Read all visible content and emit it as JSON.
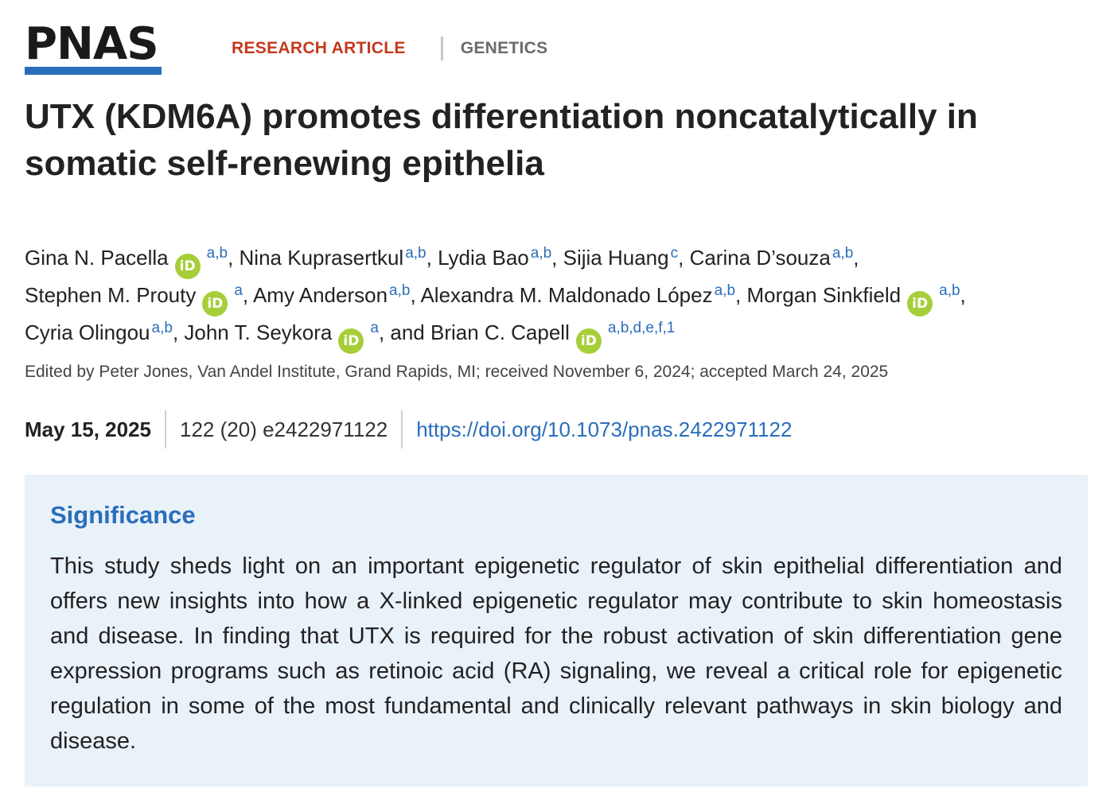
{
  "journal": {
    "logo_text": "PNAS",
    "article_type": "RESEARCH ARTICLE",
    "section": "GENETICS"
  },
  "article": {
    "title": "UTX (KDM6A) promotes differentiation noncatalytically in somatic self-renewing epithelia",
    "authors": [
      {
        "name": "Gina N. Pacella",
        "orcid": true,
        "affiliations": "a,b"
      },
      {
        "name": "Nina Kuprasertkul",
        "orcid": false,
        "affiliations": "a,b"
      },
      {
        "name": "Lydia Bao",
        "orcid": false,
        "affiliations": "a,b"
      },
      {
        "name": "Sijia Huang",
        "orcid": false,
        "affiliations": "c"
      },
      {
        "name": "Carina D’souza",
        "orcid": false,
        "affiliations": "a,b"
      },
      {
        "name": "Stephen M. Prouty",
        "orcid": true,
        "affiliations": "a"
      },
      {
        "name": "Amy Anderson",
        "orcid": false,
        "affiliations": "a,b"
      },
      {
        "name": "Alexandra M. Maldonado López",
        "orcid": false,
        "affiliations": "a,b"
      },
      {
        "name": "Morgan Sinkfield",
        "orcid": true,
        "affiliations": "a,b"
      },
      {
        "name": "Cyria Olingou",
        "orcid": false,
        "affiliations": "a,b"
      },
      {
        "name": "John T. Seykora",
        "orcid": true,
        "affiliations": "a"
      },
      {
        "name": "Brian C. Capell",
        "orcid": true,
        "affiliations": "a,b,d,e,f,1"
      }
    ],
    "orcid_label": "iD",
    "conjunction": "and",
    "edited_by": "Edited by Peter Jones, Van Andel Institute, Grand Rapids, MI; received November 6, 2024; accepted March 24, 2025",
    "pub_date": "May 15, 2025",
    "volume_issue": "122 (20) e2422971122",
    "doi": "https://doi.org/10.1073/pnas.2422971122"
  },
  "significance": {
    "heading": "Significance",
    "text": "This study sheds light on an important epigenetic regulator of skin epithelial differentiation and offers new insights into how a X-linked epigenetic regulator may contribute to skin homeostasis and disease. In finding that UTX is required for the robust activation of skin differentiation gene expression programs such as retinoic acid (RA) signaling, we reveal a critical role for epigenetic regulation in some of the most fundamental and clinically relevant pathways in skin biology and disease."
  },
  "colors": {
    "brand_blue": "#2a6ebb",
    "article_type_red": "#c4391d",
    "orcid_green": "#a6ce39",
    "significance_bg": "#e9f1f9"
  }
}
